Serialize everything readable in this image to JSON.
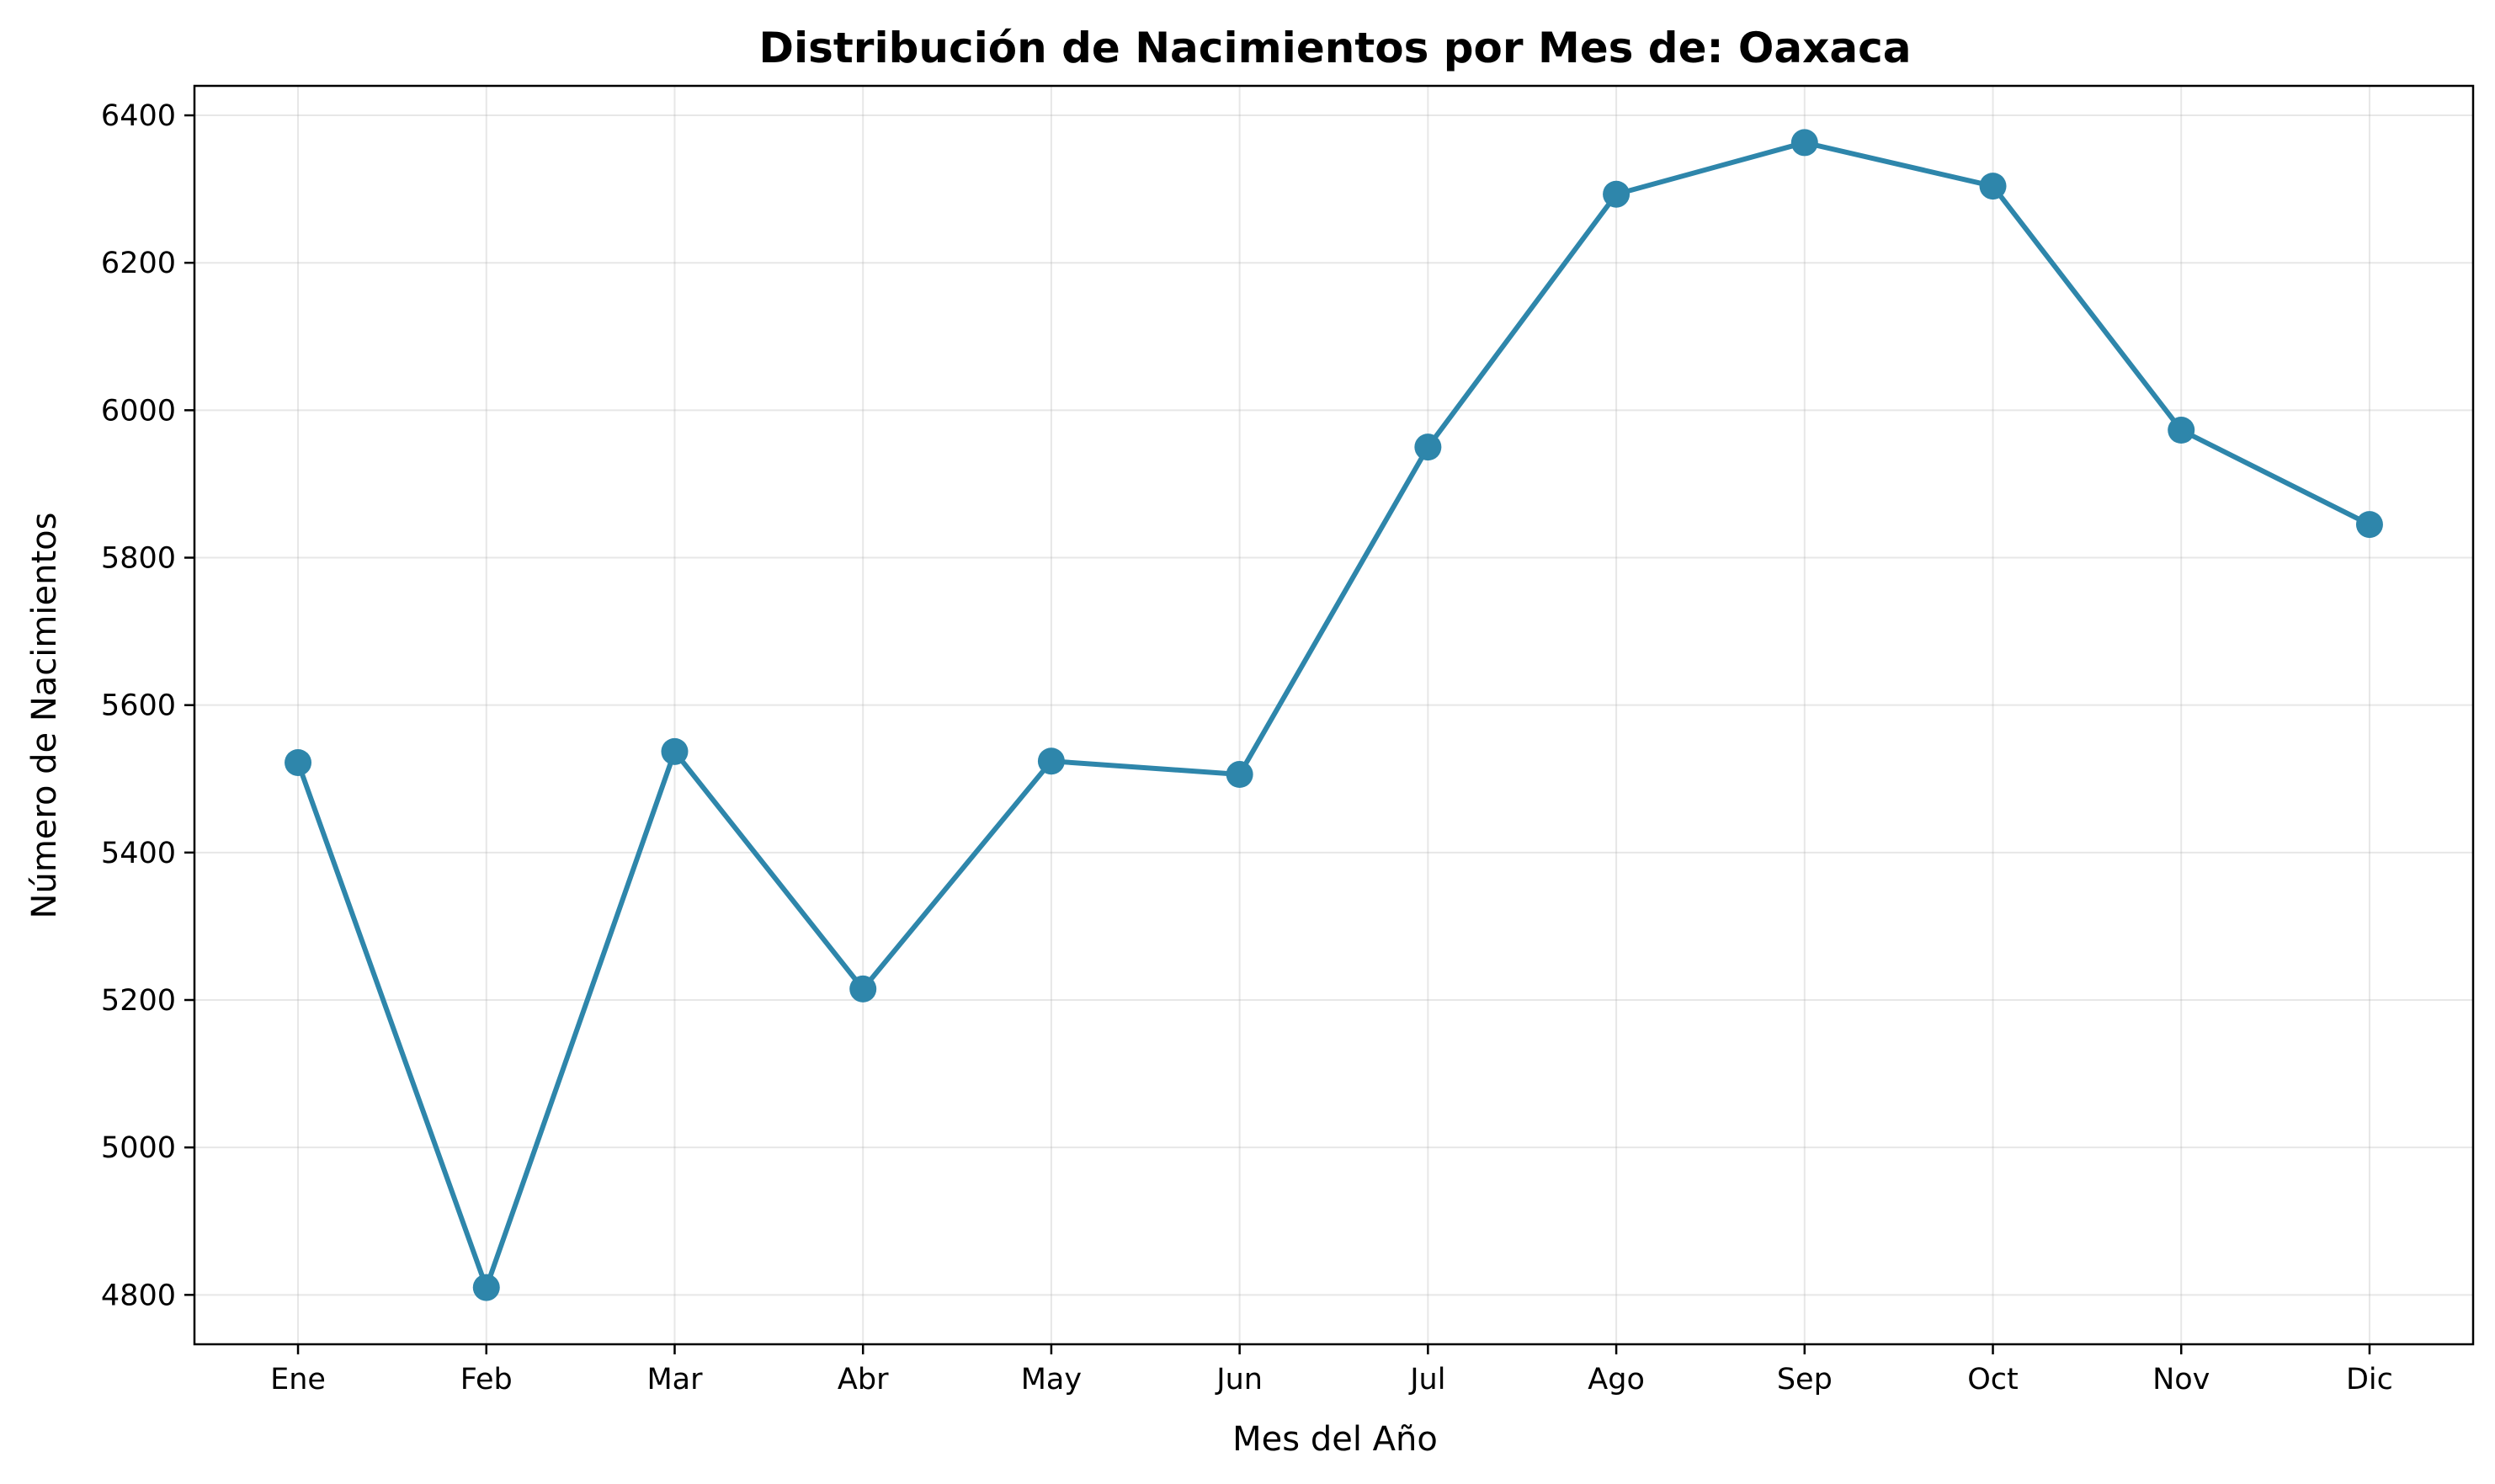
{
  "chart_data": {
    "type": "line",
    "title": "Distribución de Nacimientos por Mes de: Oaxaca",
    "xlabel": "Mes del Año",
    "ylabel": "Número de Nacimientos",
    "categories": [
      "Ene",
      "Feb",
      "Mar",
      "Abr",
      "May",
      "Jun",
      "Jul",
      "Ago",
      "Sep",
      "Oct",
      "Nov",
      "Dic"
    ],
    "series": [
      {
        "values": [
          5522,
          4810,
          5537,
          5215,
          5524,
          5506,
          5950,
          6293,
          6363,
          6304,
          5973,
          5845
        ],
        "color": "#2e86ab"
      }
    ],
    "yticks": [
      4800,
      5000,
      5200,
      5400,
      5600,
      5800,
      6000,
      6200,
      6400
    ],
    "ylim": [
      4733,
      6440
    ],
    "grid": true,
    "legend": false
  }
}
